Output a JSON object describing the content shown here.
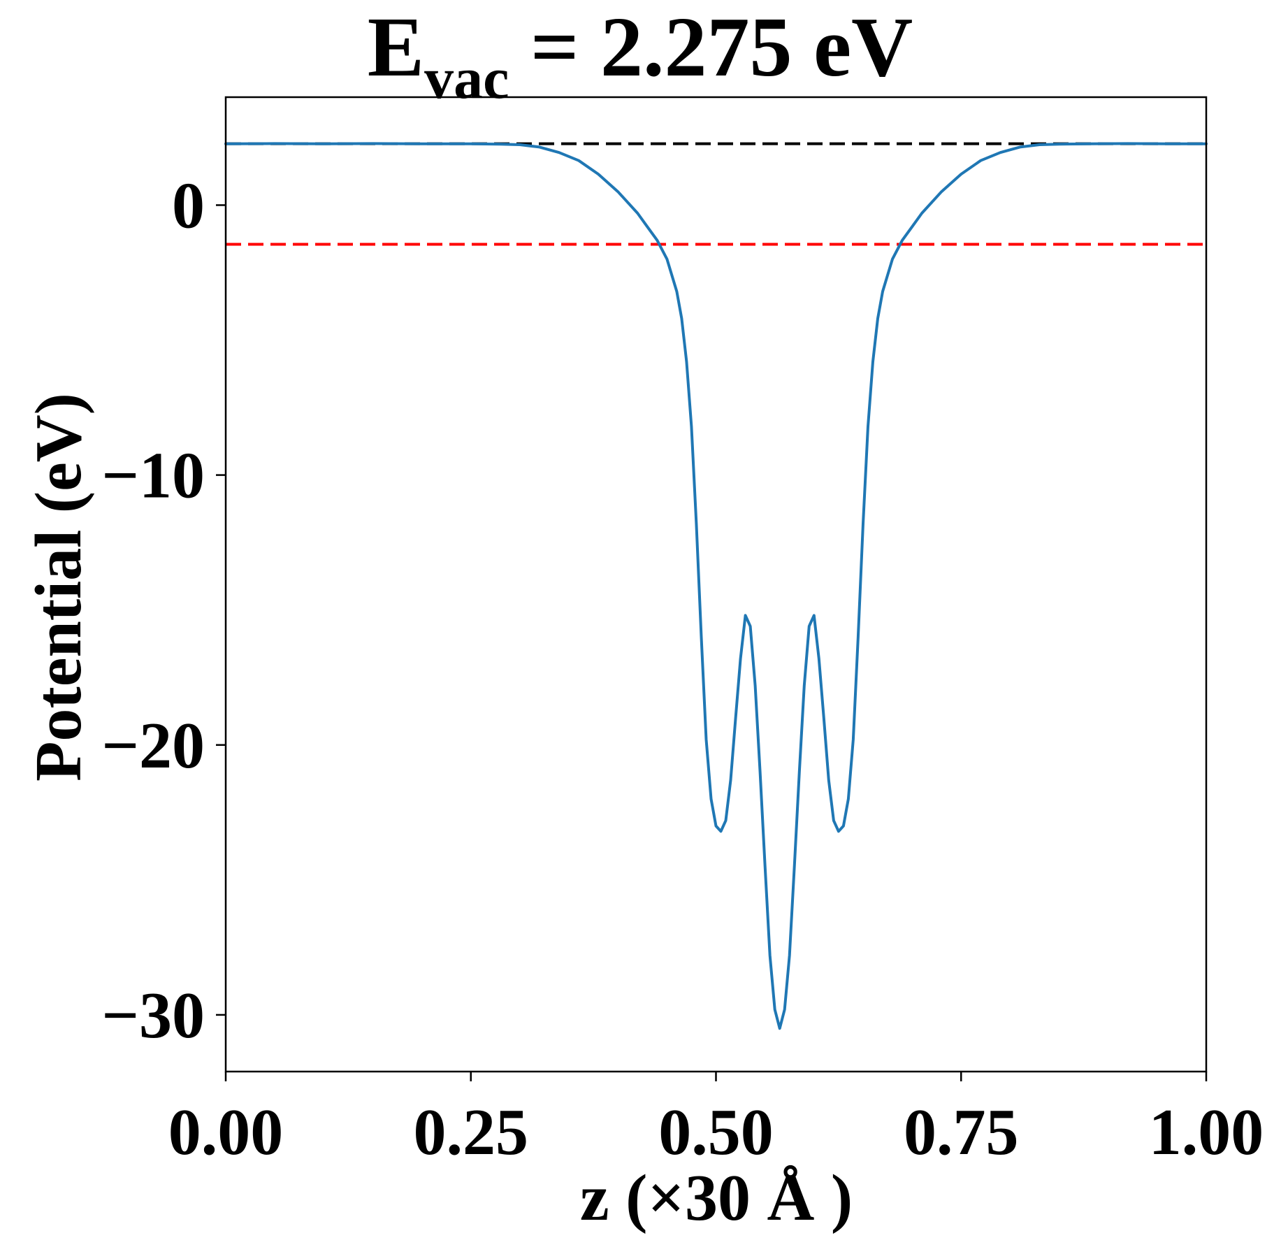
{
  "chart_data": {
    "type": "line",
    "title": {
      "main": "E",
      "subscript": "vac",
      "rest": " = 2.275 eV"
    },
    "xlabel": "z (×30 Å )",
    "ylabel": "Potential (eV)",
    "xlim": [
      0,
      1
    ],
    "ylim": [
      -32.1,
      4.0
    ],
    "xticks": [
      {
        "value": 0.0,
        "label": "0.00"
      },
      {
        "value": 0.25,
        "label": "0.25"
      },
      {
        "value": 0.5,
        "label": "0.50"
      },
      {
        "value": 0.75,
        "label": "0.75"
      },
      {
        "value": 1.0,
        "label": "1.00"
      }
    ],
    "yticks": [
      {
        "value": 0,
        "label": "0"
      },
      {
        "value": -10,
        "label": "−10"
      },
      {
        "value": -20,
        "label": "−20"
      },
      {
        "value": -30,
        "label": "−30"
      }
    ],
    "grid": false,
    "reference_lines": [
      {
        "name": "vacuum level",
        "y": 2.275,
        "color": "#000000",
        "style": "dashed"
      },
      {
        "name": "fermi level",
        "y": -1.45,
        "color": "#ff0000",
        "style": "dashed"
      }
    ],
    "series": [
      {
        "color": "#1f77b4",
        "points": [
          [
            0.0,
            2.27
          ],
          [
            0.05,
            2.28
          ],
          [
            0.1,
            2.27
          ],
          [
            0.15,
            2.28
          ],
          [
            0.2,
            2.27
          ],
          [
            0.25,
            2.27
          ],
          [
            0.28,
            2.26
          ],
          [
            0.3,
            2.24
          ],
          [
            0.32,
            2.15
          ],
          [
            0.34,
            1.95
          ],
          [
            0.36,
            1.65
          ],
          [
            0.38,
            1.15
          ],
          [
            0.4,
            0.5
          ],
          [
            0.42,
            -0.3
          ],
          [
            0.43,
            -0.8
          ],
          [
            0.44,
            -1.3
          ],
          [
            0.45,
            -2.0
          ],
          [
            0.46,
            -3.2
          ],
          [
            0.465,
            -4.2
          ],
          [
            0.47,
            -5.8
          ],
          [
            0.475,
            -8.2
          ],
          [
            0.48,
            -11.8
          ],
          [
            0.485,
            -16.0
          ],
          [
            0.49,
            -19.8
          ],
          [
            0.495,
            -22.0
          ],
          [
            0.5,
            -23.0
          ],
          [
            0.505,
            -23.2
          ],
          [
            0.51,
            -22.8
          ],
          [
            0.515,
            -21.3
          ],
          [
            0.52,
            -19.0
          ],
          [
            0.525,
            -16.8
          ],
          [
            0.53,
            -15.2
          ],
          [
            0.535,
            -15.6
          ],
          [
            0.54,
            -17.8
          ],
          [
            0.545,
            -21.0
          ],
          [
            0.55,
            -24.5
          ],
          [
            0.555,
            -27.8
          ],
          [
            0.56,
            -29.8
          ],
          [
            0.565,
            -30.5
          ],
          [
            0.57,
            -29.8
          ],
          [
            0.575,
            -27.8
          ],
          [
            0.58,
            -24.5
          ],
          [
            0.585,
            -21.0
          ],
          [
            0.59,
            -17.8
          ],
          [
            0.595,
            -15.6
          ],
          [
            0.6,
            -15.2
          ],
          [
            0.605,
            -16.8
          ],
          [
            0.61,
            -19.0
          ],
          [
            0.615,
            -21.3
          ],
          [
            0.62,
            -22.8
          ],
          [
            0.625,
            -23.2
          ],
          [
            0.63,
            -23.0
          ],
          [
            0.635,
            -22.0
          ],
          [
            0.64,
            -19.8
          ],
          [
            0.645,
            -16.0
          ],
          [
            0.65,
            -11.8
          ],
          [
            0.655,
            -8.2
          ],
          [
            0.66,
            -5.8
          ],
          [
            0.665,
            -4.2
          ],
          [
            0.67,
            -3.2
          ],
          [
            0.68,
            -2.0
          ],
          [
            0.69,
            -1.3
          ],
          [
            0.7,
            -0.8
          ],
          [
            0.71,
            -0.3
          ],
          [
            0.73,
            0.5
          ],
          [
            0.75,
            1.15
          ],
          [
            0.77,
            1.65
          ],
          [
            0.79,
            1.95
          ],
          [
            0.81,
            2.15
          ],
          [
            0.83,
            2.24
          ],
          [
            0.85,
            2.26
          ],
          [
            0.88,
            2.27
          ],
          [
            0.92,
            2.28
          ],
          [
            0.96,
            2.27
          ],
          [
            1.0,
            2.27
          ]
        ]
      }
    ]
  }
}
